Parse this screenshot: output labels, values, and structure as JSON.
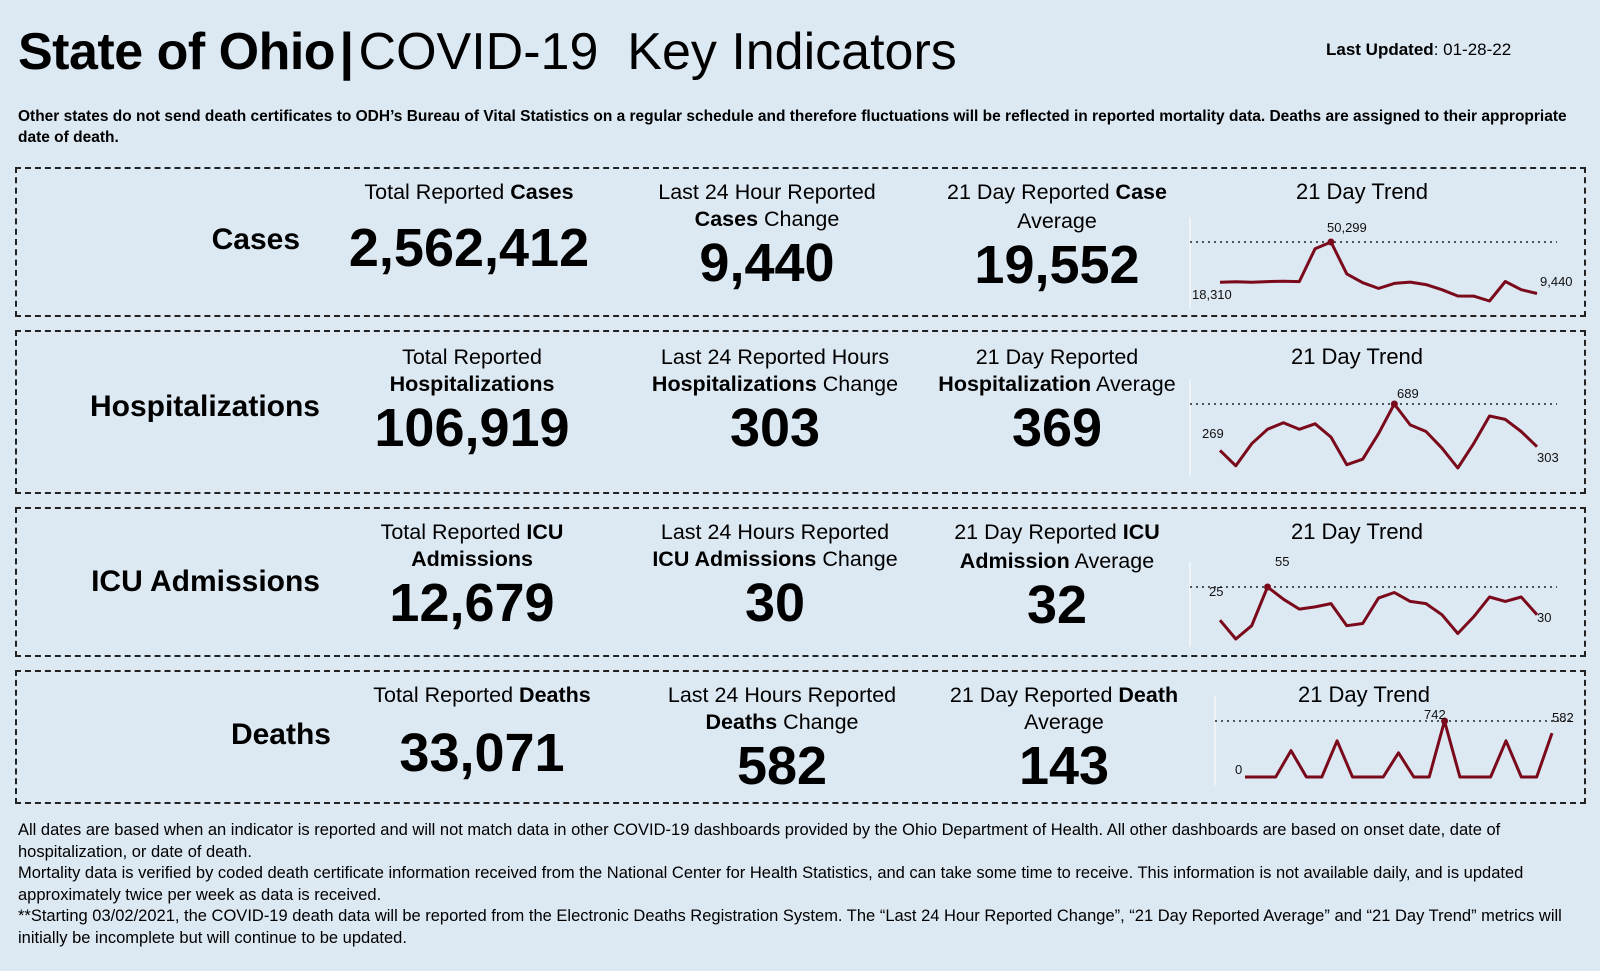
{
  "header": {
    "title_bold": "State of Ohio",
    "title_sep": "|",
    "title_light": "COVID-19  Key Indicators",
    "last_updated_label": "Last Updated",
    "last_updated_value": ": 01-28-22"
  },
  "disclaimer": "Other states do not send death certificates to ODH’s Bureau of Vital Statistics on a regular schedule and therefore fluctuations will be reflected in reported mortality data. Deaths are assigned to their appropriate date of death.",
  "rows": {
    "cases": {
      "label": "Cases",
      "total": {
        "pre": "Total Reported ",
        "bold": "Cases",
        "value": "2,562,412"
      },
      "change": {
        "l1": "Last 24 Hour Reported",
        "l2_bold": "Cases",
        "l2_rest": " Change",
        "value": "9,440"
      },
      "avg": {
        "l1_pre": "21 Day Reported ",
        "l1_bold": "Case",
        "l2": "Average",
        "value": "19,552"
      },
      "trend": {
        "title": "21 Day Trend",
        "start_label": "18,310",
        "peak_label": "50,299",
        "end_label": "9,440"
      }
    },
    "hospitalizations": {
      "label": "Hospitalizations",
      "total": {
        "l1": "Total Reported",
        "l2_bold": "Hospitalizations",
        "value": "106,919"
      },
      "change": {
        "l1": "Last 24 Reported Hours",
        "l2_bold": "Hospitalizations",
        "l2_rest": " Change",
        "value": "303"
      },
      "avg": {
        "l1": "21 Day Reported",
        "l2_bold": "Hospitalization",
        "l2_rest": " Average",
        "value": "369"
      },
      "trend": {
        "title": "21 Day Trend",
        "start_label": "269",
        "peak_label": "689",
        "end_label": "303"
      }
    },
    "icu": {
      "label": "ICU Admissions",
      "total": {
        "l1_pre": "Total Reported ",
        "l1_bold": "ICU",
        "l2_bold": "Admissions",
        "value": "12,679"
      },
      "change": {
        "l1": "Last 24 Hours Reported",
        "l2_bold": "ICU Admissions",
        "l2_rest": " Change",
        "value": "30"
      },
      "avg": {
        "l1_pre": "21 Day Reported ",
        "l1_bold": "ICU",
        "l2_bold": "Admission",
        "l2_rest": " Average",
        "value": "32"
      },
      "trend": {
        "title": "21 Day Trend",
        "start_label": "25",
        "peak_label": "55",
        "end_label": "30"
      }
    },
    "deaths": {
      "label": "Deaths",
      "total": {
        "pre": "Total Reported ",
        "bold": "Deaths",
        "value": "33,071"
      },
      "change": {
        "l1": "Last 24 Hours Reported",
        "l2_bold": "Deaths",
        "l2_rest": " Change",
        "value": "582"
      },
      "avg": {
        "l1_pre": "21 Day Reported ",
        "l1_bold": "Death",
        "l2": "Average",
        "value": "143"
      },
      "trend": {
        "title": "21 Day Trend",
        "start_label": "0",
        "peak_label": "742",
        "end_label": "582"
      }
    }
  },
  "footer": {
    "p1": "All dates are based when an indicator is reported and will not match data in other COVID-19 dashboards provided by the Ohio Department of Health. All other dashboards are based on onset date, date of hospitalization, or date of death.",
    "p2": "Mortality data is verified by coded death certificate information received from the National Center for Health Statistics, and can take some time to receive. This information is not available daily, and is updated approximately twice per week as data is received.",
    "p3": "**Starting 03/02/2021, the COVID-19 death data will be reported from the Electronic Deaths Registration System. The “Last 24 Hour Reported Change”, “21 Day Reported Average” and “21 Day Trend” metrics will initially be incomplete but will continue to be updated."
  },
  "chart_data": [
    {
      "type": "line",
      "title": "21 Day Trend",
      "series": [
        {
          "name": "Cases",
          "values": [
            18310,
            18700,
            18300,
            18900,
            19100,
            18900,
            45000,
            50299,
            25000,
            18000,
            13500,
            17500,
            18500,
            16500,
            12500,
            7500,
            7400,
            3500,
            19000,
            12500,
            9440
          ]
        }
      ],
      "annotations": [
        "18,310",
        "50,299",
        "9,440"
      ]
    },
    {
      "type": "line",
      "title": "21 Day Trend",
      "series": [
        {
          "name": "Hospitalizations",
          "values": [
            269,
            130,
            330,
            460,
            520,
            460,
            510,
            390,
            140,
            190,
            420,
            689,
            500,
            440,
            290,
            110,
            330,
            580,
            550,
            440,
            303
          ]
        }
      ],
      "annotations": [
        "269",
        "689",
        "303"
      ]
    },
    {
      "type": "line",
      "title": "21 Day Trend",
      "series": [
        {
          "name": "ICU Admissions",
          "values": [
            25,
            8,
            20,
            55,
            44,
            35,
            37,
            40,
            20,
            22,
            45,
            50,
            42,
            40,
            30,
            13,
            28,
            46,
            42,
            46,
            30
          ]
        }
      ],
      "annotations": [
        "25",
        "55",
        "30"
      ]
    },
    {
      "type": "line",
      "title": "21 Day Trend",
      "series": [
        {
          "name": "Deaths",
          "values": [
            0,
            0,
            0,
            350,
            0,
            0,
            480,
            0,
            0,
            0,
            320,
            0,
            0,
            742,
            0,
            0,
            0,
            480,
            0,
            0,
            582
          ]
        }
      ],
      "annotations": [
        "0",
        "742",
        "582"
      ]
    }
  ],
  "colors": {
    "line": "#7a0a1b",
    "background": "#dce8f2"
  }
}
